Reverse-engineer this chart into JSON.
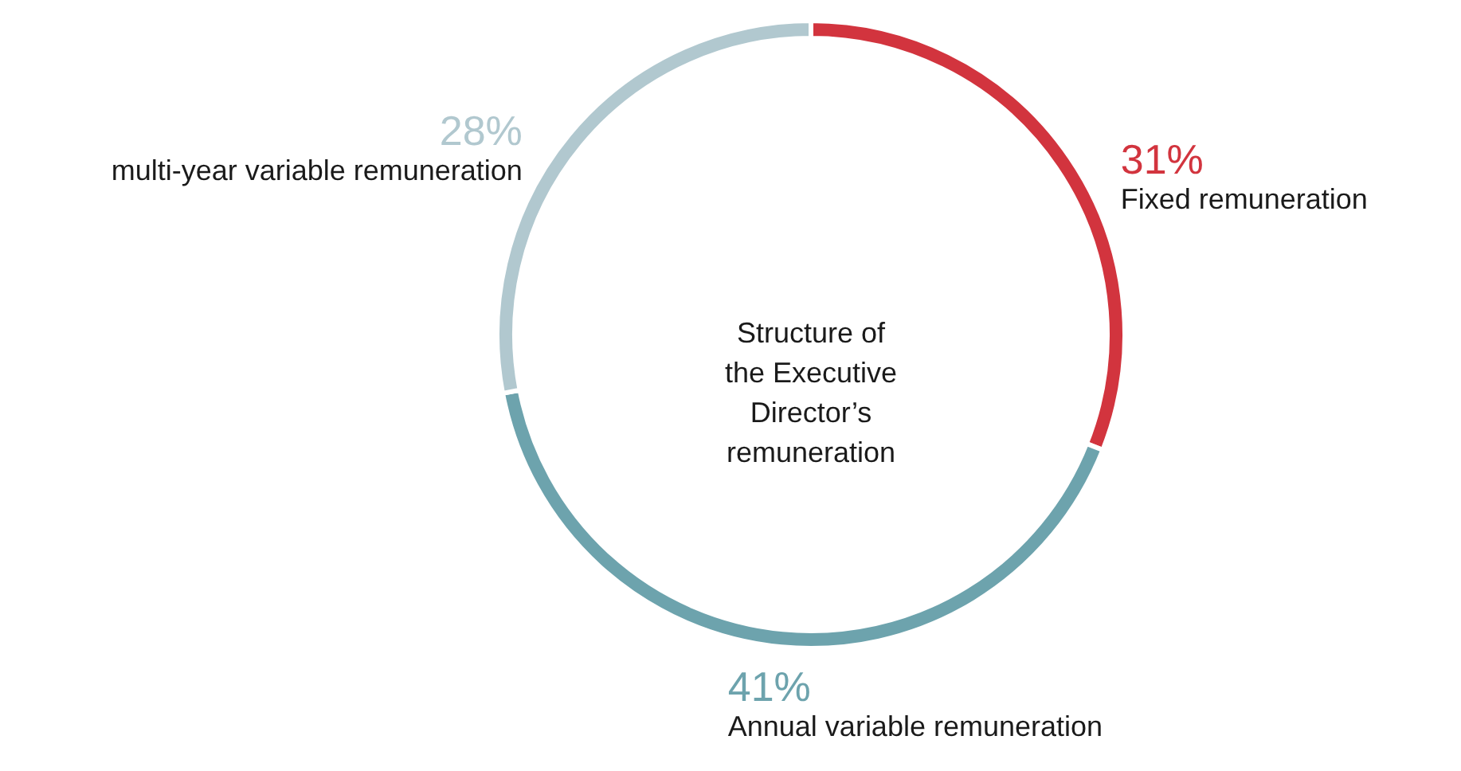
{
  "chart_data": {
    "type": "donut",
    "title": "Structure of the Executive Director’s remuneration",
    "categories": [
      "Fixed remuneration",
      "Annual variable remuneration",
      "multi-year variable remuneration"
    ],
    "values": [
      31,
      41,
      28
    ],
    "value_labels": [
      "31%",
      "41%",
      "28%"
    ],
    "colors": [
      "#d2343e",
      "#6da3ad",
      "#b1c8cf"
    ]
  }
}
